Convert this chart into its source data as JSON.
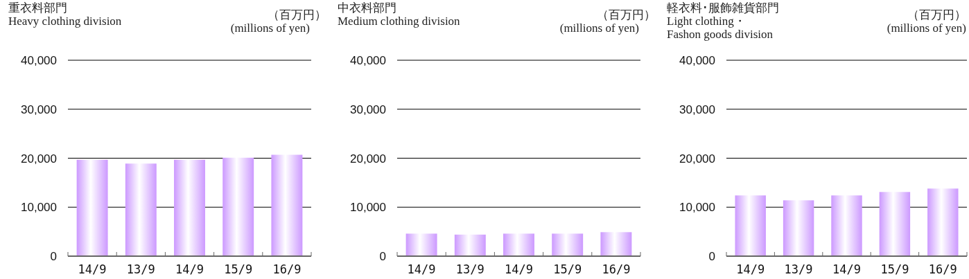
{
  "chart_data": [
    {
      "type": "bar",
      "title": "重衣料部門",
      "subtitle": "Heavy clothing division",
      "ylabel": "（百万円）",
      "annotations": [
        "(millions of yen)"
      ],
      "categories": [
        "14/9",
        "13/9",
        "14/9",
        "15/9",
        "16/9"
      ],
      "values": [
        19700,
        18900,
        19700,
        20100,
        20700
      ],
      "color": "#cc99ff",
      "ylim": [
        0,
        40000
      ],
      "yticks": [
        {
          "value": 0,
          "label": "0"
        },
        {
          "value": 10000,
          "label": "10,000"
        },
        {
          "value": 20000,
          "label": "20,000"
        },
        {
          "value": 30000,
          "label": "30,000"
        },
        {
          "value": 40000,
          "label": "40,000"
        }
      ],
      "grid": "y"
    },
    {
      "type": "bar",
      "title": "中衣料部門",
      "subtitle": "Medium clothing division",
      "ylabel": "（百万円）",
      "annotations": [
        "(millions of yen)"
      ],
      "categories": [
        "14/9",
        "13/9",
        "14/9",
        "15/9",
        "16/9"
      ],
      "values": [
        4600,
        4400,
        4600,
        4600,
        4900
      ],
      "color": "#cc99ff",
      "ylim": [
        0,
        40000
      ],
      "yticks": [
        {
          "value": 0,
          "label": "0"
        },
        {
          "value": 10000,
          "label": "10,000"
        },
        {
          "value": 20000,
          "label": "20,000"
        },
        {
          "value": 30000,
          "label": "30,000"
        },
        {
          "value": 40000,
          "label": "40,000"
        }
      ],
      "grid": "y"
    },
    {
      "type": "bar",
      "title": "軽衣料･服飾雑貨部門",
      "subtitle": "Light clothing・\nFashon goods division",
      "ylabel": "（百万円）",
      "annotations": [
        "(millions of yen)"
      ],
      "categories": [
        "14/9",
        "13/9",
        "14/9",
        "15/9",
        "16/9"
      ],
      "values": [
        12400,
        11400,
        12400,
        13100,
        13800
      ],
      "color": "#cc99ff",
      "ylim": [
        0,
        40000
      ],
      "yticks": [
        {
          "value": 0,
          "label": "0"
        },
        {
          "value": 10000,
          "label": "10,000"
        },
        {
          "value": 20000,
          "label": "20,000"
        },
        {
          "value": 30000,
          "label": "30,000"
        },
        {
          "value": 40000,
          "label": "40,000"
        }
      ],
      "grid": "y"
    }
  ]
}
